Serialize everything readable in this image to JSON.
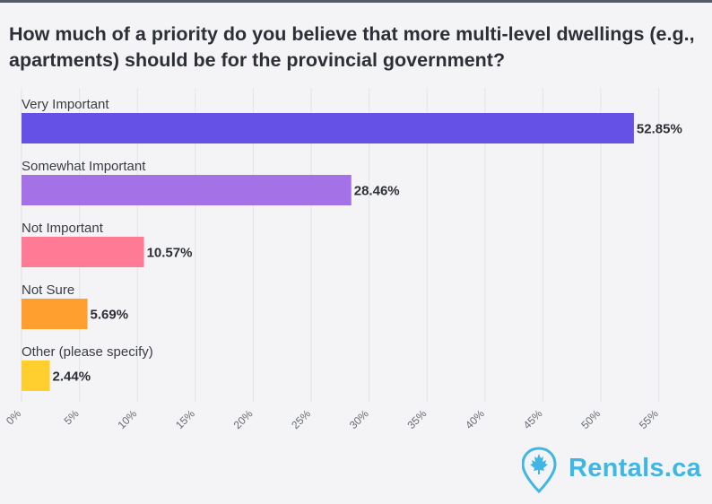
{
  "chart_data": {
    "type": "bar",
    "orientation": "horizontal",
    "title": "How much of a priority do you believe that more multi-level dwellings (e.g., apartments) should be for the provincial government?",
    "categories": [
      "Very Important",
      "Somewhat Important",
      "Not Important",
      "Not Sure",
      "Other (please specify)"
    ],
    "values": [
      52.85,
      28.46,
      10.57,
      5.69,
      2.44
    ],
    "value_labels": [
      "52.85%",
      "28.46%",
      "10.57%",
      "5.69%",
      "2.44%"
    ],
    "colors": [
      "#6651e6",
      "#a571e6",
      "#ff7b95",
      "#ff9f2f",
      "#ffcf2f"
    ],
    "xlim": [
      0,
      57.5
    ],
    "xticks": [
      0,
      5,
      10,
      15,
      20,
      25,
      30,
      35,
      40,
      45,
      50,
      55
    ],
    "xtick_labels": [
      "0%",
      "5%",
      "10%",
      "15%",
      "20%",
      "25%",
      "30%",
      "35%",
      "40%",
      "45%",
      "50%",
      "55%"
    ],
    "grid": true
  },
  "brand": {
    "name": "Rentals.ca",
    "color": "#3fb6e3",
    "icon": "map-pin-maple-leaf-icon"
  }
}
